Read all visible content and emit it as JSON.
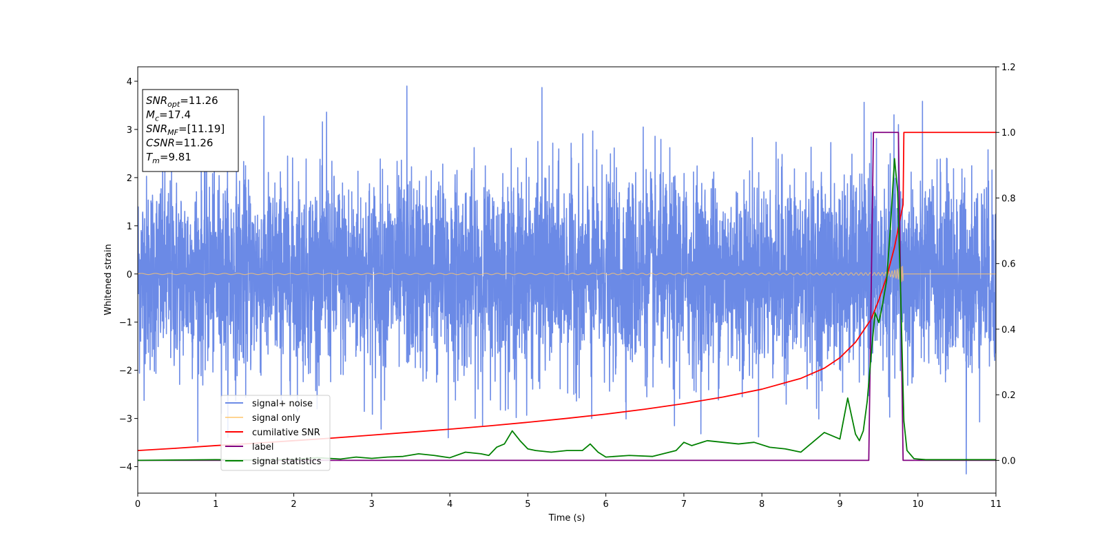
{
  "chart_data": {
    "type": "line",
    "title": "",
    "xlabel": "Time (s)",
    "ylabel": "Whitened strain",
    "xlim": [
      0,
      11
    ],
    "ylim_left": [
      -4.55,
      4.3
    ],
    "ylim_right": [
      -0.1,
      1.2
    ],
    "x_ticks": [
      0,
      1,
      2,
      3,
      4,
      5,
      6,
      7,
      8,
      9,
      10,
      11
    ],
    "y_ticks_left": [
      -4,
      -3,
      -2,
      -1,
      0,
      1,
      2,
      3,
      4
    ],
    "y_ticks_right": [
      0.0,
      0.2,
      0.4,
      0.6,
      0.8,
      1.0,
      1.2
    ],
    "y_tick_labels_left": [
      "−4",
      "−3",
      "−2",
      "−1",
      "0",
      "1",
      "2",
      "3",
      "4"
    ],
    "y_tick_labels_right": [
      "0.0",
      "0.2",
      "0.4",
      "0.6",
      "0.8",
      "1.0",
      "1.2"
    ],
    "grid": false,
    "legend_position": "lower-left",
    "series": [
      {
        "name": "signal+ noise",
        "axis": "left",
        "color": "#6b8ae6",
        "kind": "noise",
        "std": 1.0,
        "extremes": [
          [
            3.45,
            3.9
          ],
          [
            5.18,
            3.87
          ],
          [
            2.42,
            3.36
          ],
          [
            9.75,
            3.1
          ],
          [
            6.48,
            3.05
          ],
          [
            10.62,
            -4.15
          ],
          [
            3.12,
            -3.22
          ],
          [
            5.82,
            -3.0
          ],
          [
            6.88,
            -3.15
          ],
          [
            3.98,
            -3.4
          ],
          [
            9.4,
            2.94
          ],
          [
            4.85,
            -2.98
          ]
        ]
      },
      {
        "name": "signal only",
        "axis": "left",
        "color": "#ffc66b",
        "kind": "chirp",
        "merger_time": 9.81
      },
      {
        "name": "cumilative SNR",
        "axis": "right",
        "color": "#ff0000",
        "kind": "line",
        "x": [
          0,
          0.5,
          1,
          1.5,
          2,
          2.5,
          3,
          3.5,
          4,
          4.5,
          5,
          5.5,
          6,
          6.5,
          7,
          7.5,
          8,
          8.5,
          8.8,
          9.0,
          9.2,
          9.4,
          9.5,
          9.6,
          9.7,
          9.75,
          9.81,
          9.82,
          11
        ],
        "y": [
          0.03,
          0.037,
          0.045,
          0.052,
          0.06,
          0.068,
          0.077,
          0.086,
          0.095,
          0.105,
          0.116,
          0.128,
          0.141,
          0.156,
          0.173,
          0.193,
          0.217,
          0.25,
          0.281,
          0.313,
          0.36,
          0.43,
          0.49,
          0.56,
          0.65,
          0.71,
          0.78,
          1.0,
          1.0
        ]
      },
      {
        "name": "label",
        "axis": "right",
        "color": "#800080",
        "kind": "line",
        "x": [
          0,
          9.37,
          9.43,
          9.75,
          9.81,
          11
        ],
        "y": [
          0,
          0,
          1,
          1,
          0,
          0
        ]
      },
      {
        "name": "signal statistics",
        "axis": "right",
        "color": "#008000",
        "kind": "line",
        "x": [
          0,
          0.5,
          1,
          1.5,
          2,
          2.3,
          2.6,
          2.8,
          3.0,
          3.2,
          3.4,
          3.6,
          3.8,
          4.0,
          4.2,
          4.4,
          4.5,
          4.6,
          4.7,
          4.8,
          4.9,
          5.0,
          5.1,
          5.3,
          5.5,
          5.7,
          5.8,
          5.9,
          6.0,
          6.3,
          6.6,
          6.9,
          7.0,
          7.1,
          7.3,
          7.5,
          7.7,
          7.9,
          8.1,
          8.3,
          8.5,
          8.7,
          8.8,
          8.9,
          9.0,
          9.1,
          9.2,
          9.25,
          9.3,
          9.35,
          9.4,
          9.45,
          9.5,
          9.55,
          9.6,
          9.65,
          9.7,
          9.74,
          9.78,
          9.82,
          9.86,
          9.95,
          10.1,
          11
        ],
        "y": [
          0.0,
          0.001,
          0.002,
          0.001,
          0.003,
          0.008,
          0.004,
          0.01,
          0.006,
          0.01,
          0.012,
          0.02,
          0.015,
          0.008,
          0.025,
          0.02,
          0.015,
          0.04,
          0.05,
          0.09,
          0.06,
          0.035,
          0.03,
          0.025,
          0.03,
          0.03,
          0.05,
          0.025,
          0.01,
          0.015,
          0.012,
          0.03,
          0.055,
          0.045,
          0.06,
          0.055,
          0.05,
          0.055,
          0.04,
          0.035,
          0.025,
          0.065,
          0.085,
          0.075,
          0.065,
          0.19,
          0.08,
          0.06,
          0.09,
          0.18,
          0.32,
          0.45,
          0.42,
          0.48,
          0.55,
          0.72,
          0.92,
          0.82,
          0.5,
          0.12,
          0.03,
          0.005,
          0.002,
          0.002
        ]
      }
    ],
    "annotation": {
      "lines": [
        {
          "main": "SNR",
          "sub": "opt",
          "value": "=11.26"
        },
        {
          "main": "M",
          "sub": "c",
          "value": "=17.4"
        },
        {
          "main": "SNR",
          "sub": "MF",
          "value": "=[11.19]"
        },
        {
          "main": "CSNR",
          "sub": "",
          "value": "=11.26"
        },
        {
          "main": "T",
          "sub": "m",
          "value": "=9.81"
        }
      ]
    }
  }
}
